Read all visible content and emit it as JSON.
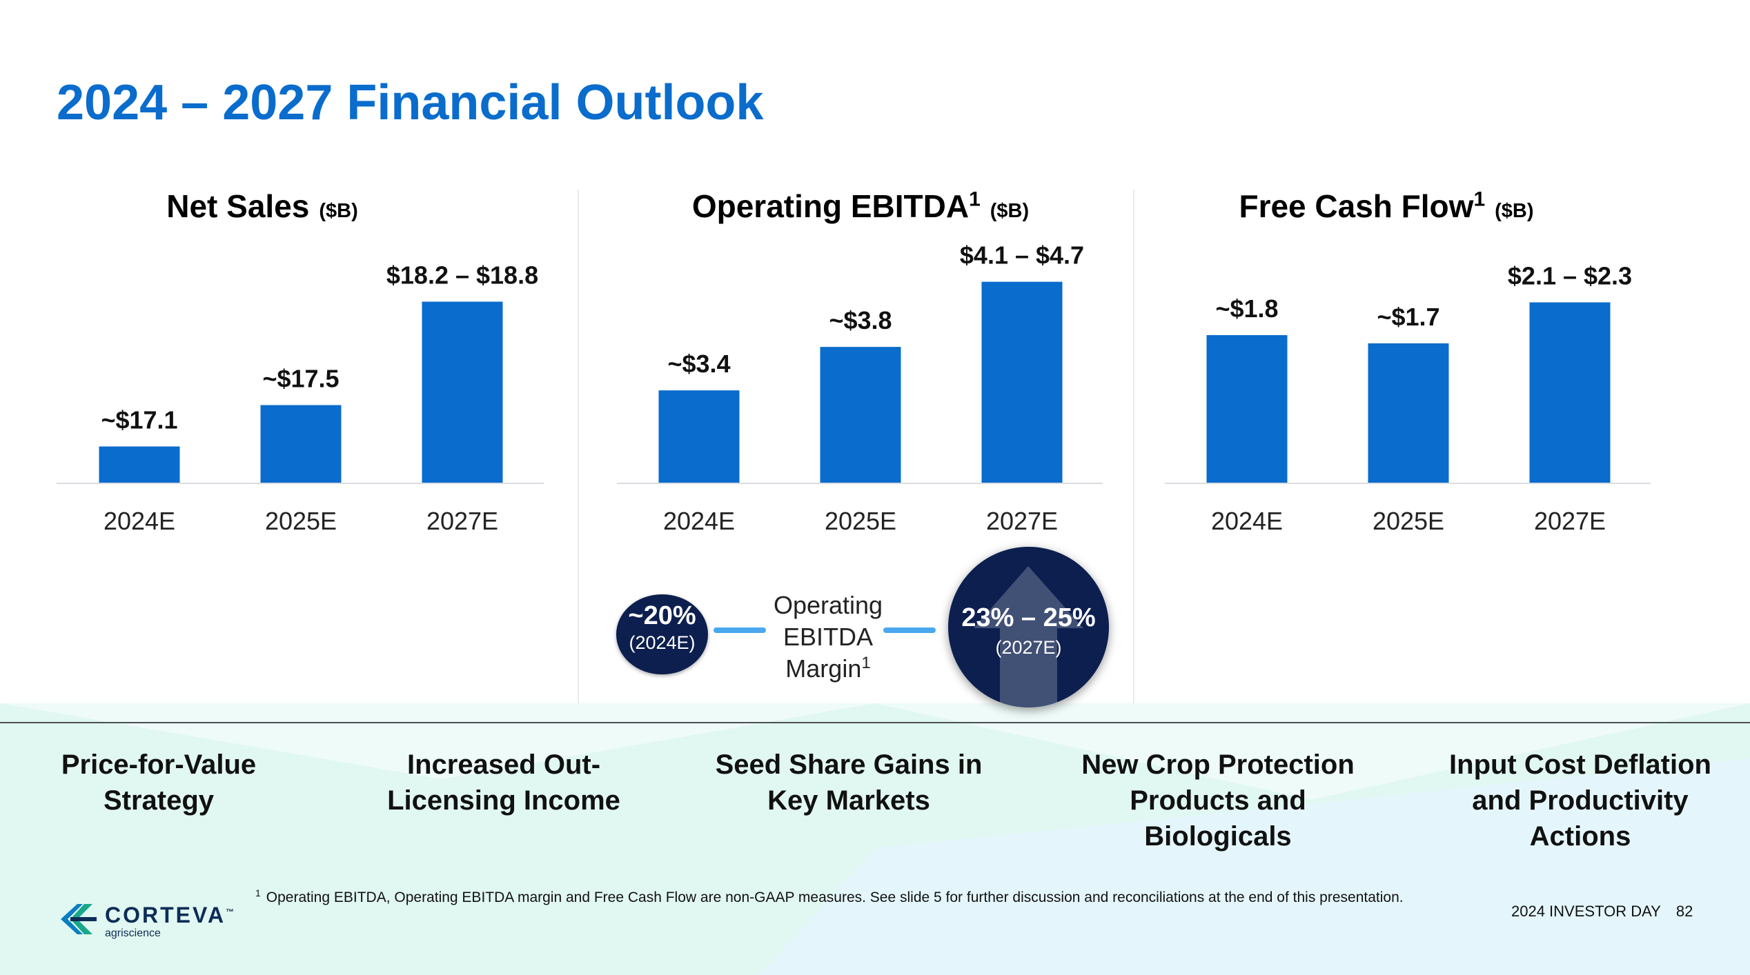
{
  "title": "2024 – 2027 Financial Outlook",
  "colors": {
    "title": "#0a6ccc",
    "bar": "#0a6ccc",
    "circle": "#0c1f4f",
    "connector": "#4aa8ef",
    "band": "#e3f8f4"
  },
  "chart_data": [
    {
      "type": "bar",
      "title": "Net Sales",
      "unit": "($B)",
      "categories": [
        "2024E",
        "2025E",
        "2027E"
      ],
      "values": [
        17.1,
        17.5,
        18.5
      ],
      "data_labels": [
        "~$17.1",
        "~$17.5",
        "$18.2 – $18.8"
      ],
      "ylim": [
        16.75,
        18.85
      ],
      "grid": false
    },
    {
      "type": "bar",
      "title": "Operating EBITDA",
      "title_sup": "1",
      "unit": "($B)",
      "categories": [
        "2024E",
        "2025E",
        "2027E"
      ],
      "values": [
        3.4,
        3.8,
        4.4
      ],
      "data_labels": [
        "~$3.4",
        "~$3.8",
        "$4.1 – $4.7"
      ],
      "ylim": [
        2.55,
        4.55
      ],
      "grid": false
    },
    {
      "type": "bar",
      "title": "Free Cash Flow",
      "title_sup": "1",
      "unit": "($B)",
      "categories": [
        "2024E",
        "2025E",
        "2027E"
      ],
      "values": [
        1.8,
        1.7,
        2.2
      ],
      "data_labels": [
        "~$1.8",
        "~$1.7",
        "$2.1 – $2.3"
      ],
      "ylim": [
        0.0,
        2.65
      ],
      "grid": false
    }
  ],
  "margin": {
    "label_lines": [
      "Operating",
      "EBITDA",
      "Margin"
    ],
    "label_sup": "1",
    "current_value": "~20%",
    "current_period": "(2024E)",
    "target_value": "23% – 25%",
    "target_period": "(2027E)"
  },
  "drivers": [
    "Price-for-Value Strategy",
    "Increased Out-Licensing Income",
    "Seed Share Gains in Key Markets",
    "New Crop Protection Products and Biologicals",
    "Input Cost Deflation and Productivity Actions"
  ],
  "footnote": {
    "sup": "1",
    "text": "Operating EBITDA, Operating EBITDA margin and Free Cash Flow are non-GAAP measures. See slide 5 for further discussion and reconciliations at the end of this presentation."
  },
  "footer": {
    "event": "2024 INVESTOR DAY",
    "page": "82"
  },
  "logo": {
    "name": "CORTEVA",
    "tm": "™",
    "sub": "agriscience"
  }
}
